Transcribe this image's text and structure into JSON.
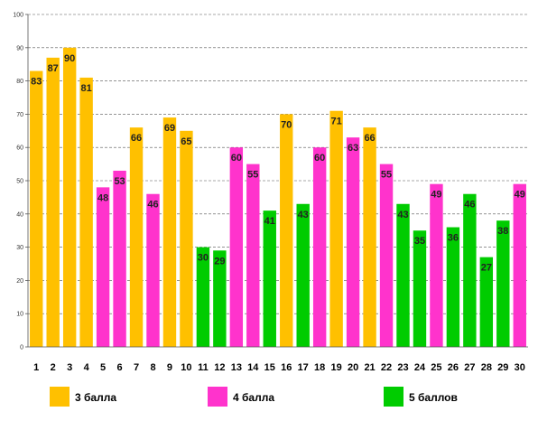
{
  "chart_data": {
    "type": "bar",
    "title": "",
    "xlabel": "",
    "ylabel": "",
    "ylim": [
      0,
      100
    ],
    "yticks": [
      0,
      10,
      20,
      30,
      40,
      50,
      60,
      70,
      80,
      90,
      100
    ],
    "grid": true,
    "legend_position": "bottom",
    "categories": [
      "1",
      "2",
      "3",
      "4",
      "5",
      "6",
      "7",
      "8",
      "9",
      "10",
      "11",
      "12",
      "13",
      "14",
      "15",
      "16",
      "17",
      "18",
      "19",
      "20",
      "21",
      "22",
      "23",
      "24",
      "25",
      "26",
      "27",
      "28",
      "29",
      "30"
    ],
    "values": [
      83,
      87,
      90,
      81,
      48,
      53,
      66,
      46,
      69,
      65,
      30,
      29,
      60,
      55,
      41,
      70,
      43,
      60,
      71,
      63,
      66,
      55,
      43,
      35,
      49,
      36,
      46,
      27,
      38,
      49
    ],
    "groups": [
      3,
      3,
      3,
      3,
      4,
      4,
      3,
      4,
      3,
      3,
      5,
      5,
      4,
      4,
      5,
      3,
      5,
      4,
      3,
      4,
      3,
      4,
      5,
      5,
      4,
      5,
      5,
      5,
      5,
      4
    ],
    "series": [
      {
        "name": "3 балла",
        "group": 3,
        "color": "#FFC000"
      },
      {
        "name": "4 балла",
        "group": 4,
        "color": "#FF33CC"
      },
      {
        "name": "5 баллов",
        "group": 5,
        "color": "#00CC00"
      }
    ]
  }
}
